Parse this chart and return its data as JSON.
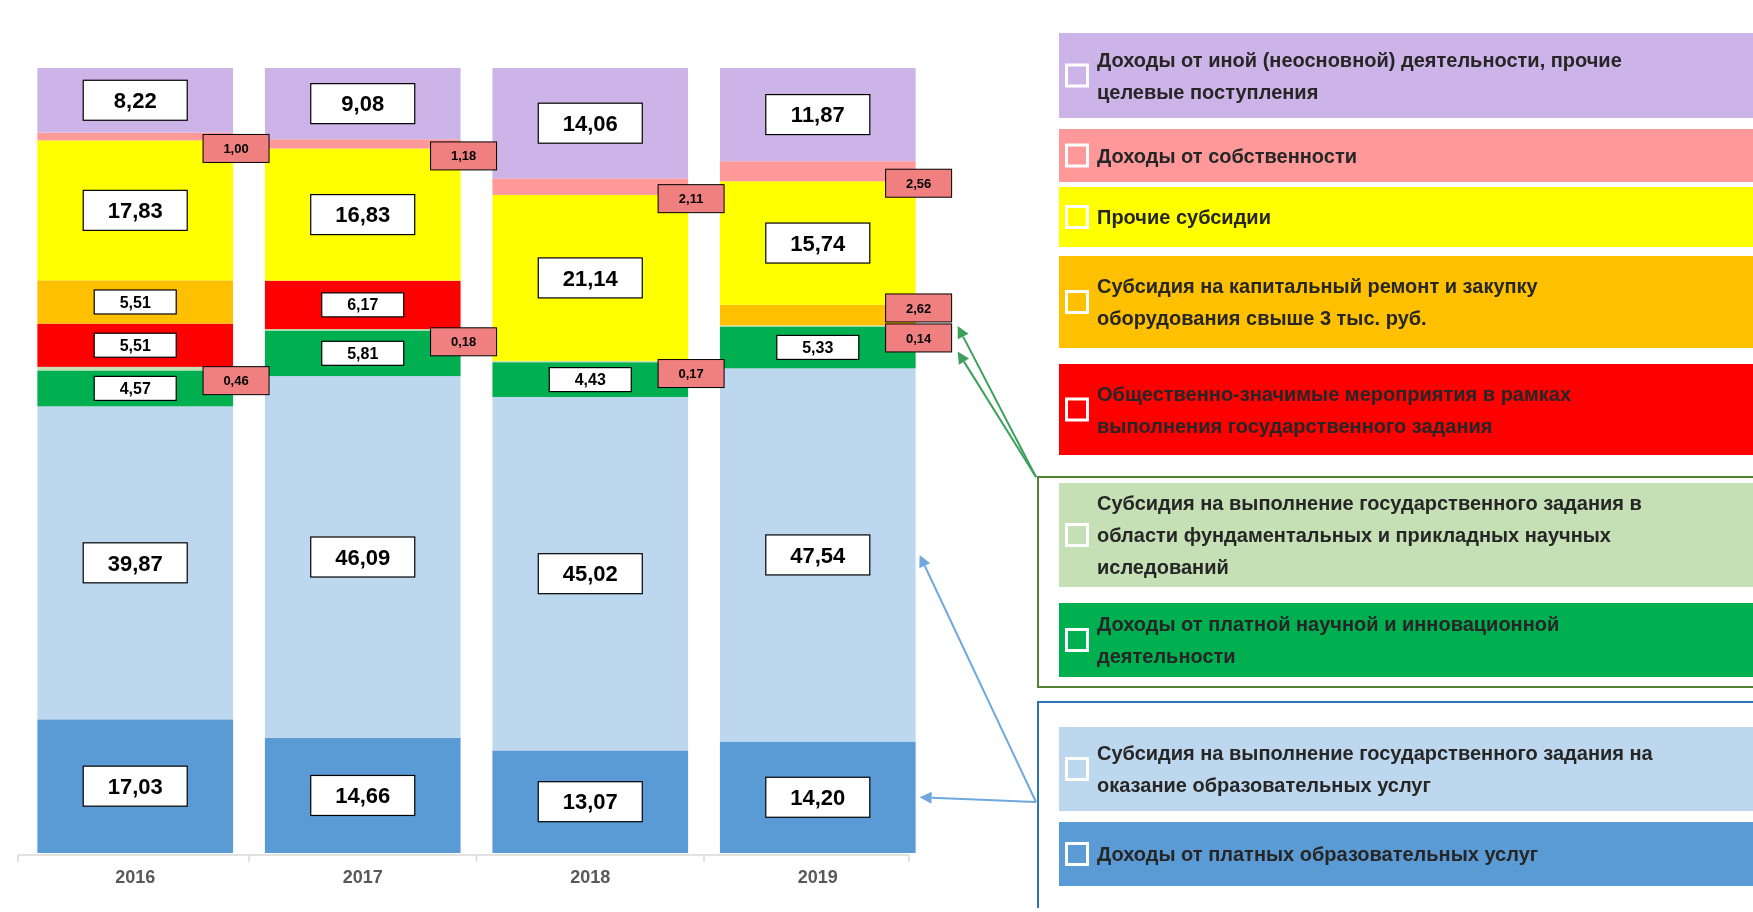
{
  "chart_data": {
    "type": "bar",
    "stacked": true,
    "categories": [
      "2016",
      "2017",
      "2018",
      "2019"
    ],
    "legend": "right",
    "data_labels": true,
    "series": [
      {
        "name": "Доходы от платных образовательных услуг",
        "color": "#5b9bd5",
        "values": [
          17.03,
          14.66,
          13.07,
          14.2
        ],
        "value_labels": [
          "17,03",
          "14,66",
          "13,07",
          "14,20"
        ]
      },
      {
        "name": "Субсидия на выполнение государственного задания на оказание образовательных услуг",
        "color": "#bdd7ee",
        "values": [
          39.87,
          46.09,
          45.02,
          47.54
        ],
        "value_labels": [
          "39,87",
          "46,09",
          "45,02",
          "47,54"
        ]
      },
      {
        "name": "Доходы от платной научной и инновационной деятельности",
        "color": "#00b050",
        "values": [
          4.57,
          5.81,
          4.43,
          5.33
        ],
        "value_labels": [
          "4,57",
          "5,81",
          "4,43",
          "5,33"
        ]
      },
      {
        "name": "Субсидия на выполнение государственного задания в области фундаментальных и прикладных научных иследований",
        "color": "#c5e0b4",
        "values": [
          0.46,
          0.18,
          0.17,
          0.14
        ],
        "value_labels": [
          "0,46",
          "0,18",
          "0,17",
          "0,14"
        ]
      },
      {
        "name": "Общественно-значимые мероприятия в рамках выполнения государственного задания",
        "color": "#ff0000",
        "values": [
          5.51,
          6.17,
          null,
          null
        ],
        "value_labels": [
          "5,51",
          "6,17",
          null,
          null
        ]
      },
      {
        "name": "Субсидия на капитальный ремонт и закупку оборудования свыше 3 тыс. руб.",
        "color": "#ffc000",
        "values": [
          5.51,
          null,
          null,
          2.62
        ],
        "value_labels": [
          "5,51",
          null,
          null,
          "2,62"
        ]
      },
      {
        "name": "Прочие субсидии",
        "color": "#ffff00",
        "values": [
          17.83,
          16.83,
          21.14,
          15.74
        ],
        "value_labels": [
          "17,83",
          "16,83",
          "21,14",
          "15,74"
        ]
      },
      {
        "name": "Доходы от собственности",
        "color": "#ff9999",
        "values": [
          1.0,
          1.18,
          2.11,
          2.56
        ],
        "value_labels": [
          "1,00",
          "1,18",
          "2,11",
          "2,56"
        ]
      },
      {
        "name": "Доходы от иной (неосновной) деятельности, прочие целевые поступления",
        "color": "#cdb4e8",
        "values": [
          8.22,
          9.08,
          14.06,
          11.87
        ],
        "value_labels": [
          "8,22",
          "9,08",
          "14,06",
          "11,87"
        ]
      }
    ]
  }
}
